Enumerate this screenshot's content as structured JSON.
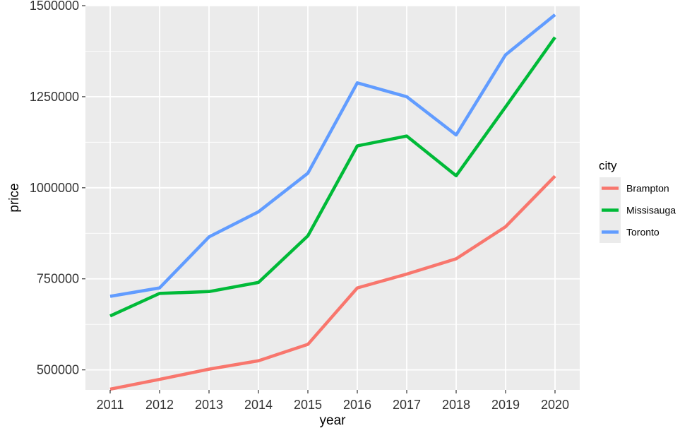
{
  "chart_data": {
    "type": "line",
    "xlabel": "year",
    "ylabel": "price",
    "x": [
      2011,
      2012,
      2013,
      2014,
      2015,
      2016,
      2017,
      2018,
      2019,
      2020
    ],
    "xlim": [
      2010.5,
      2020.5
    ],
    "ylim": [
      445000,
      1500000
    ],
    "yticks": [
      500000,
      750000,
      1000000,
      1250000,
      1500000
    ],
    "ytick_labels": [
      "500000",
      "750000",
      "1000000",
      "1250000",
      "1500000"
    ],
    "xtick_labels": [
      "2011",
      "2012",
      "2013",
      "2014",
      "2015",
      "2016",
      "2017",
      "2018",
      "2019",
      "2020"
    ],
    "grid": true,
    "panel_background": "#ebebeb",
    "legend": {
      "title": "city",
      "position": "right"
    },
    "series": [
      {
        "name": "Brampton",
        "color": "#F8766D",
        "values": [
          447000,
          474000,
          502000,
          525000,
          570000,
          725000,
          763000,
          805000,
          893000,
          1032000
        ]
      },
      {
        "name": "Missisauga",
        "color": "#00BA38",
        "values": [
          648000,
          710000,
          715000,
          740000,
          868000,
          1115000,
          1142000,
          1033000,
          1222000,
          1413000
        ]
      },
      {
        "name": "Toronto",
        "color": "#619CFF",
        "values": [
          702000,
          725000,
          865000,
          934000,
          1040000,
          1288000,
          1250000,
          1145000,
          1365000,
          1475000
        ]
      }
    ]
  }
}
